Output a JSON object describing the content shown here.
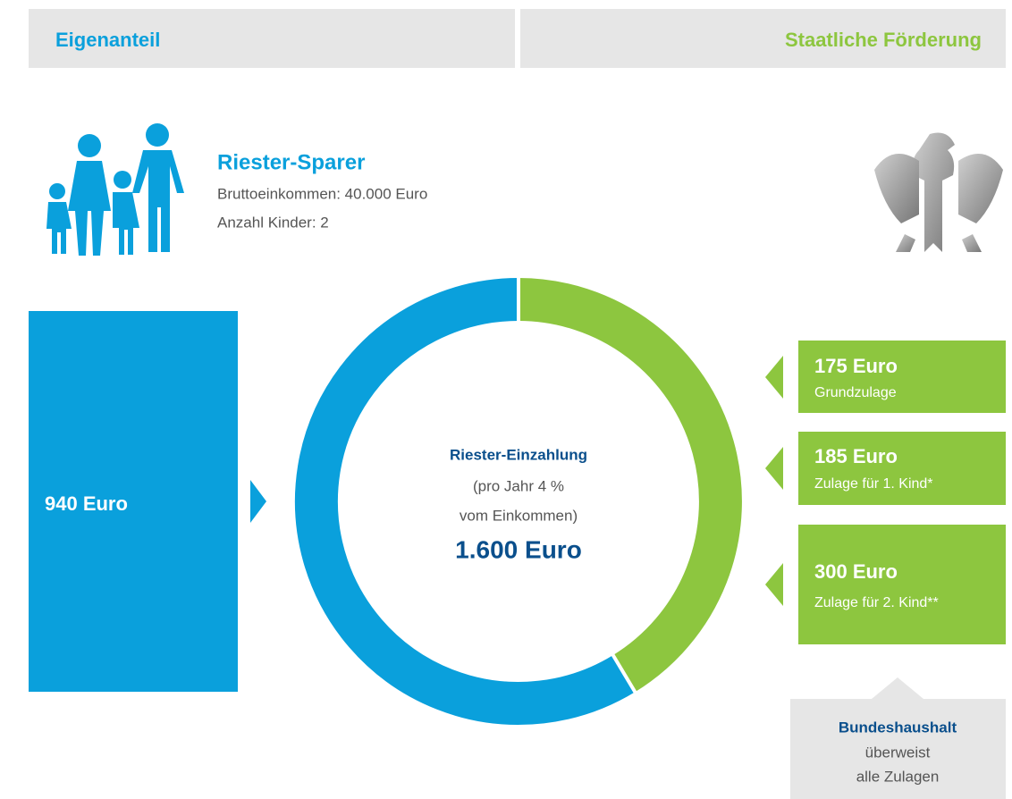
{
  "header": {
    "left": "Eigenanteil",
    "right": "Staatliche Förderung"
  },
  "saver": {
    "title": "Riester-Sparer",
    "lines": [
      "Bruttoeinkommen: 40.000 Euro",
      "Anzahl Kinder: 2"
    ]
  },
  "own_contribution": "940 Euro",
  "center": {
    "title": "Riester-Einzahlung",
    "lines": [
      "(pro Jahr 4 %",
      "vom Einkommen)"
    ],
    "total": "1.600 Euro"
  },
  "subsidies": [
    {
      "amount": "175 Euro",
      "label": "Grundzulage"
    },
    {
      "amount": "185 Euro",
      "label": "Zulage für 1. Kind*"
    },
    {
      "amount": "300 Euro",
      "label": "Zulage für 2. Kind**"
    }
  ],
  "budget": {
    "title": "Bundeshaushalt",
    "lines": [
      "überweist",
      "alle Zulagen"
    ]
  }
}
